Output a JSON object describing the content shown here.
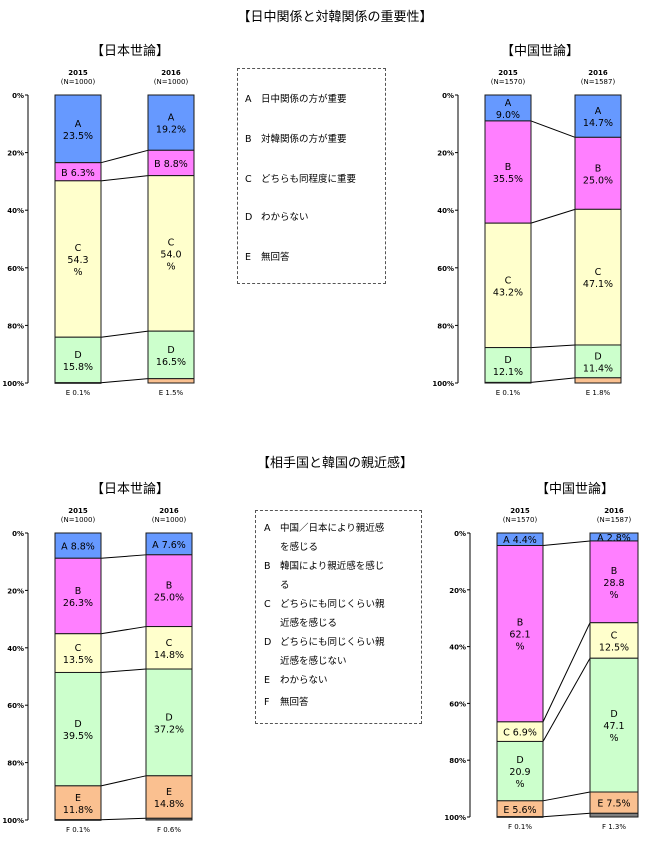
{
  "sections": [
    {
      "title": "【日中関係と対韓関係の重要性】"
    },
    {
      "title": "【相手国と韓国の親近感】"
    }
  ],
  "legends": [
    {
      "items": [
        {
          "key": "A",
          "lines": [
            "日中関係の方が重要"
          ]
        },
        {
          "key": "B",
          "lines": [
            "対韓関係の方が重要"
          ]
        },
        {
          "key": "C",
          "lines": [
            "どちらも同程度に重要"
          ]
        },
        {
          "key": "D",
          "lines": [
            "わからない"
          ]
        },
        {
          "key": "E",
          "lines": [
            "無回答"
          ]
        }
      ]
    },
    {
      "items": [
        {
          "key": "A",
          "lines": [
            "中国／日本により親近感",
            "を感じる"
          ]
        },
        {
          "key": "B",
          "lines": [
            "韓国により親近感を感じ",
            "る"
          ]
        },
        {
          "key": "C",
          "lines": [
            "どちらにも同じくらい親",
            "近感を感じる"
          ]
        },
        {
          "key": "D",
          "lines": [
            "どちらにも同じくらい親",
            "近感を感じない"
          ]
        },
        {
          "key": "E",
          "lines": [
            "わからない"
          ]
        },
        {
          "key": "F",
          "lines": [
            "無回答"
          ]
        }
      ]
    }
  ],
  "colors": {
    "A": "#6699ff",
    "B": "#ff7fff",
    "C": "#ffffcc",
    "D": "#ccffcc",
    "E": "#fac090",
    "F": "#7f7f7f",
    "border": "#1a1a1a"
  },
  "chart_data": [
    {
      "type": "bar",
      "stacked": true,
      "percent": true,
      "title": "【日本世論】",
      "yticks": [
        "0%",
        "20%",
        "40%",
        "60%",
        "80%",
        "100%"
      ],
      "ylim": [
        0,
        100
      ],
      "columns": [
        {
          "year": "2015",
          "n": "(N=1000)",
          "segments": [
            {
              "key": "A",
              "value": 23.5,
              "label": [
                "A",
                "23.5%"
              ]
            },
            {
              "key": "B",
              "value": 6.3,
              "label": [
                "B 6.3%"
              ]
            },
            {
              "key": "C",
              "value": 54.3,
              "label": [
                "C",
                "54.3",
                "%"
              ]
            },
            {
              "key": "D",
              "value": 15.8,
              "label": [
                "D",
                "15.8%"
              ]
            },
            {
              "key": "E",
              "value": 0.1,
              "label": []
            }
          ],
          "below": "E 0.1%"
        },
        {
          "year": "2016",
          "n": "(N=1000)",
          "segments": [
            {
              "key": "A",
              "value": 19.2,
              "label": [
                "A",
                "19.2%"
              ]
            },
            {
              "key": "B",
              "value": 8.8,
              "label": [
                "B 8.8%"
              ]
            },
            {
              "key": "C",
              "value": 54.0,
              "label": [
                "C",
                "54.0",
                "%"
              ]
            },
            {
              "key": "D",
              "value": 16.5,
              "label": [
                "D",
                "16.5%"
              ]
            },
            {
              "key": "E",
              "value": 1.5,
              "label": []
            }
          ],
          "below": "E 1.5%"
        }
      ]
    },
    {
      "type": "bar",
      "stacked": true,
      "percent": true,
      "title": "【中国世論】",
      "yticks": [
        "0%",
        "20%",
        "40%",
        "60%",
        "80%",
        "100%"
      ],
      "ylim": [
        0,
        100
      ],
      "columns": [
        {
          "year": "2015",
          "n": "(N=1570)",
          "segments": [
            {
              "key": "A",
              "value": 9.0,
              "label": [
                "A",
                "9.0%"
              ]
            },
            {
              "key": "B",
              "value": 35.5,
              "label": [
                "B",
                "35.5%"
              ]
            },
            {
              "key": "C",
              "value": 43.2,
              "label": [
                "C",
                "43.2%"
              ]
            },
            {
              "key": "D",
              "value": 12.1,
              "label": [
                "D",
                "12.1%"
              ]
            },
            {
              "key": "E",
              "value": 0.1,
              "label": []
            }
          ],
          "below": "E 0.1%"
        },
        {
          "year": "2016",
          "n": "(N=1587)",
          "segments": [
            {
              "key": "A",
              "value": 14.7,
              "label": [
                "A",
                "14.7%"
              ]
            },
            {
              "key": "B",
              "value": 25.0,
              "label": [
                "B",
                "25.0%"
              ]
            },
            {
              "key": "C",
              "value": 47.1,
              "label": [
                "C",
                "47.1%"
              ]
            },
            {
              "key": "D",
              "value": 11.4,
              "label": [
                "D",
                "11.4%"
              ]
            },
            {
              "key": "E",
              "value": 1.8,
              "label": []
            }
          ],
          "below": "E 1.8%"
        }
      ]
    },
    {
      "type": "bar",
      "stacked": true,
      "percent": true,
      "title": "【日本世論】",
      "yticks": [
        "0%",
        "20%",
        "40%",
        "60%",
        "80%",
        "100%"
      ],
      "ylim": [
        0,
        100
      ],
      "columns": [
        {
          "year": "2015",
          "n": "(N=1000)",
          "segments": [
            {
              "key": "A",
              "value": 8.8,
              "label": [
                "A 8.8%"
              ]
            },
            {
              "key": "B",
              "value": 26.3,
              "label": [
                "B",
                "26.3%"
              ]
            },
            {
              "key": "C",
              "value": 13.5,
              "label": [
                "C",
                "13.5%"
              ]
            },
            {
              "key": "D",
              "value": 39.5,
              "label": [
                "D",
                "39.5%"
              ]
            },
            {
              "key": "E",
              "value": 11.8,
              "label": [
                "E",
                "11.8%"
              ]
            },
            {
              "key": "F",
              "value": 0.1,
              "label": []
            }
          ],
          "below": "F 0.1%"
        },
        {
          "year": "2016",
          "n": "(N=1000)",
          "segments": [
            {
              "key": "A",
              "value": 7.6,
              "label": [
                "A 7.6%"
              ]
            },
            {
              "key": "B",
              "value": 25.0,
              "label": [
                "B",
                "25.0%"
              ]
            },
            {
              "key": "C",
              "value": 14.8,
              "label": [
                "C",
                "14.8%"
              ]
            },
            {
              "key": "D",
              "value": 37.2,
              "label": [
                "D",
                "37.2%"
              ]
            },
            {
              "key": "E",
              "value": 14.8,
              "label": [
                "E",
                "14.8%"
              ]
            },
            {
              "key": "F",
              "value": 0.6,
              "label": []
            }
          ],
          "below": "F 0.6%"
        }
      ]
    },
    {
      "type": "bar",
      "stacked": true,
      "percent": true,
      "title": "【中国世論】",
      "yticks": [
        "0%",
        "20%",
        "40%",
        "60%",
        "80%",
        "100%"
      ],
      "ylim": [
        0,
        100
      ],
      "columns": [
        {
          "year": "2015",
          "n": "(N=1570)",
          "segments": [
            {
              "key": "A",
              "value": 4.4,
              "label": [
                "A 4.4%"
              ]
            },
            {
              "key": "B",
              "value": 62.1,
              "label": [
                "B",
                "62.1",
                "%"
              ]
            },
            {
              "key": "C",
              "value": 6.9,
              "label": [
                "C 6.9%"
              ]
            },
            {
              "key": "D",
              "value": 20.9,
              "label": [
                "D",
                "20.9",
                "%"
              ]
            },
            {
              "key": "E",
              "value": 5.6,
              "label": [
                "E 5.6%"
              ]
            },
            {
              "key": "F",
              "value": 0.1,
              "label": []
            }
          ],
          "below": "F 0.1%"
        },
        {
          "year": "2016",
          "n": "(N=1587)",
          "segments": [
            {
              "key": "A",
              "value": 2.8,
              "label": [
                "A 2.8%"
              ]
            },
            {
              "key": "B",
              "value": 28.8,
              "label": [
                "B",
                "28.8",
                "%"
              ]
            },
            {
              "key": "C",
              "value": 12.5,
              "label": [
                "C",
                "12.5%"
              ]
            },
            {
              "key": "D",
              "value": 47.1,
              "label": [
                "D",
                "47.1",
                "%"
              ]
            },
            {
              "key": "E",
              "value": 7.5,
              "label": [
                "E 7.5%"
              ]
            },
            {
              "key": "F",
              "value": 1.3,
              "label": []
            }
          ],
          "below": "F 1.3%"
        }
      ]
    }
  ]
}
